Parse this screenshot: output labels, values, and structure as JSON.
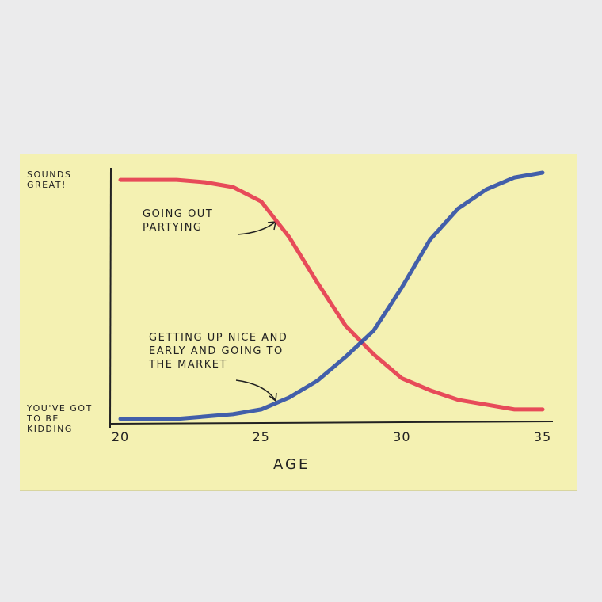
{
  "chart_data": {
    "type": "line",
    "x": [
      20,
      21,
      22,
      23,
      24,
      25,
      26,
      27,
      28,
      29,
      30,
      31,
      32,
      33,
      34,
      35
    ],
    "xlim": [
      20,
      35
    ],
    "xticks": [
      20,
      25,
      30,
      35
    ],
    "x_label": "AGE",
    "ylim": [
      -3,
      105
    ],
    "yticks": [
      {
        "value": 100,
        "label": "SOUNDS GREAT!"
      },
      {
        "value": 0,
        "label": "YOU'VE GOT TO BE KIDDING"
      }
    ],
    "series": [
      {
        "name": "GOING OUT PARTYING",
        "color": "#e6394f",
        "values": [
          100,
          100,
          100,
          99,
          97,
          91,
          76,
          57,
          39,
          27,
          17,
          12,
          8,
          6,
          4,
          4
        ]
      },
      {
        "name": "GETTING UP NICE AND EARLY AND GOING TO THE MARKET",
        "color": "#2f4fa8",
        "values": [
          0,
          0,
          0,
          1,
          2,
          4,
          9,
          16,
          26,
          37,
          55,
          75,
          88,
          96,
          101,
          103
        ]
      }
    ]
  }
}
